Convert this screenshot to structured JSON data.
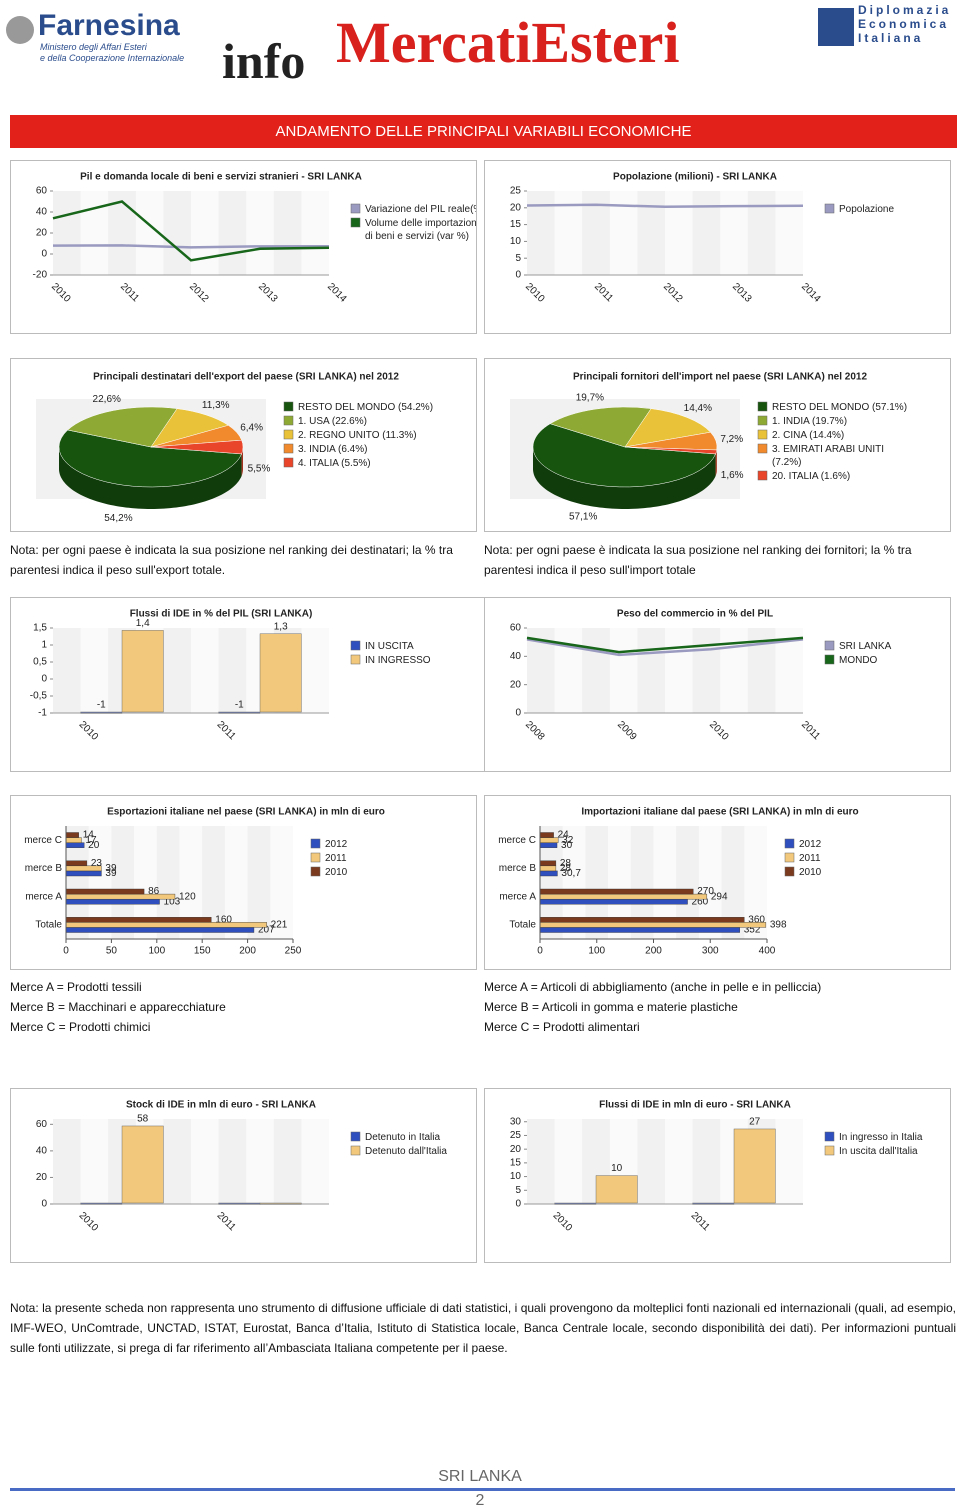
{
  "header": {
    "logo_left": "Farnesina",
    "logo_left_sub": [
      "Ministero degli Affari Esteri",
      "e della Cooperazione Internazionale"
    ],
    "logo_center_a": "info",
    "logo_center_b": "MercatiEsteri",
    "logo_right": [
      "Diplomazia",
      "Economica",
      "Italiana"
    ]
  },
  "banner": "ANDAMENTO DELLE PRINCIPALI VARIABILI ECONOMICHE",
  "chart_data": [
    {
      "type": "line",
      "title": "Pil e domanda locale di beni e servizi stranieri - SRI LANKA",
      "categories": [
        "2010",
        "2011",
        "2012",
        "2013",
        "2014"
      ],
      "series": [
        {
          "name": "Variazione del PIL reale(%",
          "color": "#9a9ac0",
          "values": [
            8,
            8.2,
            6.3,
            7.3,
            7.4
          ]
        },
        {
          "name": "Volume delle importazioni di beni e servizi (var %)",
          "color": "#17661a",
          "values": [
            34,
            50,
            -6,
            5,
            6
          ]
        }
      ],
      "ylim": [
        -20,
        60
      ],
      "yticks": [
        -20,
        0,
        20,
        40,
        60
      ],
      "legend": "right"
    },
    {
      "type": "line",
      "title": "Popolazione (milioni) - SRI LANKA",
      "categories": [
        "2010",
        "2011",
        "2012",
        "2013",
        "2014"
      ],
      "series": [
        {
          "name": "Popolazione",
          "color": "#9a9ac0",
          "values": [
            20.7,
            20.9,
            20.3,
            20.5,
            20.6
          ]
        }
      ],
      "ylim": [
        0,
        25
      ],
      "yticks": [
        0,
        5,
        10,
        15,
        20,
        25
      ],
      "legend": "right"
    },
    {
      "type": "pie",
      "title": "Principali destinatari dell'export del paese (SRI LANKA) nel 2012",
      "categories": [
        "RESTO DEL MONDO (54.2%)",
        "1. USA (22.6%)",
        "2. REGNO UNITO (11.3%)",
        "3. INDIA (6.4%)",
        "4. ITALIA (5.5%)"
      ],
      "values": [
        54.2,
        22.6,
        11.3,
        6.4,
        5.5
      ],
      "value_labels": [
        "54,2%",
        "22,6%",
        "11,3%",
        "6,4%",
        "5,5%"
      ],
      "colors": [
        "#17550f",
        "#8eaa35",
        "#e9c23a",
        "#f08a2c",
        "#e8452a"
      ],
      "legend": "right"
    },
    {
      "type": "pie",
      "title": "Principali fornitori dell'import nel paese (SRI LANKA) nel 2012",
      "categories": [
        "RESTO DEL MONDO (57.1%)",
        "1. INDIA (19.7%)",
        "2. CINA (14.4%)",
        "3. EMIRATI ARABI UNITI (7.2%)",
        "20. ITALIA (1.6%)"
      ],
      "values": [
        57.1,
        19.7,
        14.4,
        7.2,
        1.6
      ],
      "value_labels": [
        "57,1%",
        "19,7%",
        "14,4%",
        "7,2%",
        "1,6%"
      ],
      "colors": [
        "#17550f",
        "#8eaa35",
        "#e9c23a",
        "#f08a2c",
        "#e8452a"
      ],
      "legend": "right"
    },
    {
      "type": "bar",
      "title": "Flussi di IDE in % del PIL (SRI LANKA)",
      "categories": [
        "2010",
        "2011"
      ],
      "series": [
        {
          "name": "IN USCITA",
          "color": "#2f4fbf",
          "values": [
            -1,
            -1
          ]
        },
        {
          "name": "IN INGRESSO",
          "color": "#f2c87c",
          "values": [
            1.4,
            1.3
          ],
          "value_labels": [
            "1,4",
            "1,3"
          ]
        }
      ],
      "ylim": [
        -1,
        1.5
      ],
      "yticks": [
        {
          "value": -1,
          "label": "-1"
        },
        {
          "value": -0.5,
          "label": "-0,5"
        },
        0,
        {
          "value": 0.5,
          "label": "0,5"
        },
        1,
        {
          "value": 1.5,
          "label": "1,5"
        }
      ],
      "data_labels": true,
      "legend": "right"
    },
    {
      "type": "line",
      "title": "Peso del commercio in % del PIL",
      "categories": [
        "2008",
        "2009",
        "2010",
        "2011"
      ],
      "series": [
        {
          "name": "SRI LANKA",
          "color": "#9a9ac0",
          "values": [
            52,
            41,
            45,
            52
          ]
        },
        {
          "name": "MONDO",
          "color": "#17661a",
          "values": [
            53,
            43,
            48,
            53
          ]
        }
      ],
      "ylim": [
        0,
        60
      ],
      "yticks": [
        0,
        20,
        40,
        60
      ],
      "legend": "right"
    },
    {
      "type": "hbar",
      "title": "Esportazioni italiane nel paese (SRI LANKA) in mln di euro",
      "categories": [
        "Totale",
        "merce A",
        "merce B",
        "merce C"
      ],
      "series": [
        {
          "name": "2012",
          "color": "#2f4fbf",
          "values": [
            207,
            103,
            39,
            20
          ]
        },
        {
          "name": "2011",
          "color": "#f2c87c",
          "values": [
            221,
            120,
            39,
            17
          ]
        },
        {
          "name": "2010",
          "color": "#7a3a1e",
          "values": [
            160,
            86,
            23,
            14
          ]
        }
      ],
      "xlim": [
        0,
        250
      ],
      "xticks": [
        0,
        50,
        100,
        150,
        200,
        250
      ],
      "data_labels": true,
      "legend": "right"
    },
    {
      "type": "hbar",
      "title": "Importazioni italiane dal paese (SRI LANKA) in mln di euro",
      "categories": [
        "Totale",
        "merce A",
        "merce B",
        "merce C"
      ],
      "series": [
        {
          "name": "2012",
          "color": "#2f4fbf",
          "values": [
            352,
            260,
            30.7,
            30
          ],
          "value_labels": [
            "352",
            "260",
            "30,7",
            "30"
          ]
        },
        {
          "name": "2011",
          "color": "#f2c87c",
          "values": [
            398,
            294,
            28,
            32
          ]
        },
        {
          "name": "2010",
          "color": "#7a3a1e",
          "values": [
            360,
            270,
            28,
            24
          ]
        }
      ],
      "xlim": [
        0,
        400
      ],
      "xticks": [
        0,
        100,
        200,
        300,
        400
      ],
      "data_labels": true,
      "legend": "right"
    },
    {
      "type": "bar",
      "title": "Stock di IDE in mln di euro - SRI LANKA",
      "categories": [
        "2010",
        "2011"
      ],
      "series": [
        {
          "name": "Detenuto in Italia",
          "color": "#2f4fbf",
          "values": [
            0,
            0
          ]
        },
        {
          "name": "Detenuto dall'Italia",
          "color": "#f2c87c",
          "values": [
            58,
            0
          ]
        }
      ],
      "ylim": [
        0,
        64
      ],
      "yticks": [
        0,
        20,
        40,
        60
      ],
      "data_labels": true,
      "legend": "right"
    },
    {
      "type": "bar",
      "title": "Flussi di IDE in mln di euro - SRI LANKA",
      "categories": [
        "2010",
        "2011"
      ],
      "series": [
        {
          "name": "In ingresso in Italia",
          "color": "#2f4fbf",
          "values": [
            0,
            0
          ]
        },
        {
          "name": "In uscita dall'Italia",
          "color": "#f2c87c",
          "values": [
            10,
            27
          ]
        }
      ],
      "ylim": [
        0,
        31
      ],
      "yticks": [
        0,
        5,
        10,
        15,
        20,
        25,
        30
      ],
      "data_labels": true,
      "legend": "right"
    }
  ],
  "notes": {
    "export_rank": "Nota: per ogni paese è indicata la sua posizione nel ranking dei destinatari; la % tra parentesi indica il peso sull'export totale.",
    "import_rank": "Nota: per ogni paese è indicata la sua posizione nel ranking dei fornitori; la % tra parentesi indica il peso sull'import totale",
    "export_goods": [
      "Merce A = Prodotti tessili",
      "Merce B = Macchinari e apparecchiature",
      "Merce C = Prodotti chimici"
    ],
    "import_goods": [
      "Merce A = Articoli di abbigliamento (anche in pelle e in pelliccia)",
      "Merce B = Articoli in gomma e materie plastiche",
      "Merce C = Prodotti alimentari"
    ],
    "footer": "Nota: la presente scheda non rappresenta uno strumento di diffusione ufficiale di dati statistici, i quali provengono da molteplici fonti nazionali ed internazionali (quali, ad esempio, IMF-WEO, UnComtrade, UNCTAD, ISTAT, Eurostat, Banca d’Italia, Istituto di Statistica locale, Banca Centrale locale, secondo disponibilità dei dati). Per informazioni puntuali sulle fonti utilizzate, si prega di far riferimento all’Ambasciata Italiana competente per il paese."
  },
  "footer": {
    "country": "SRI LANKA",
    "page": "2"
  }
}
